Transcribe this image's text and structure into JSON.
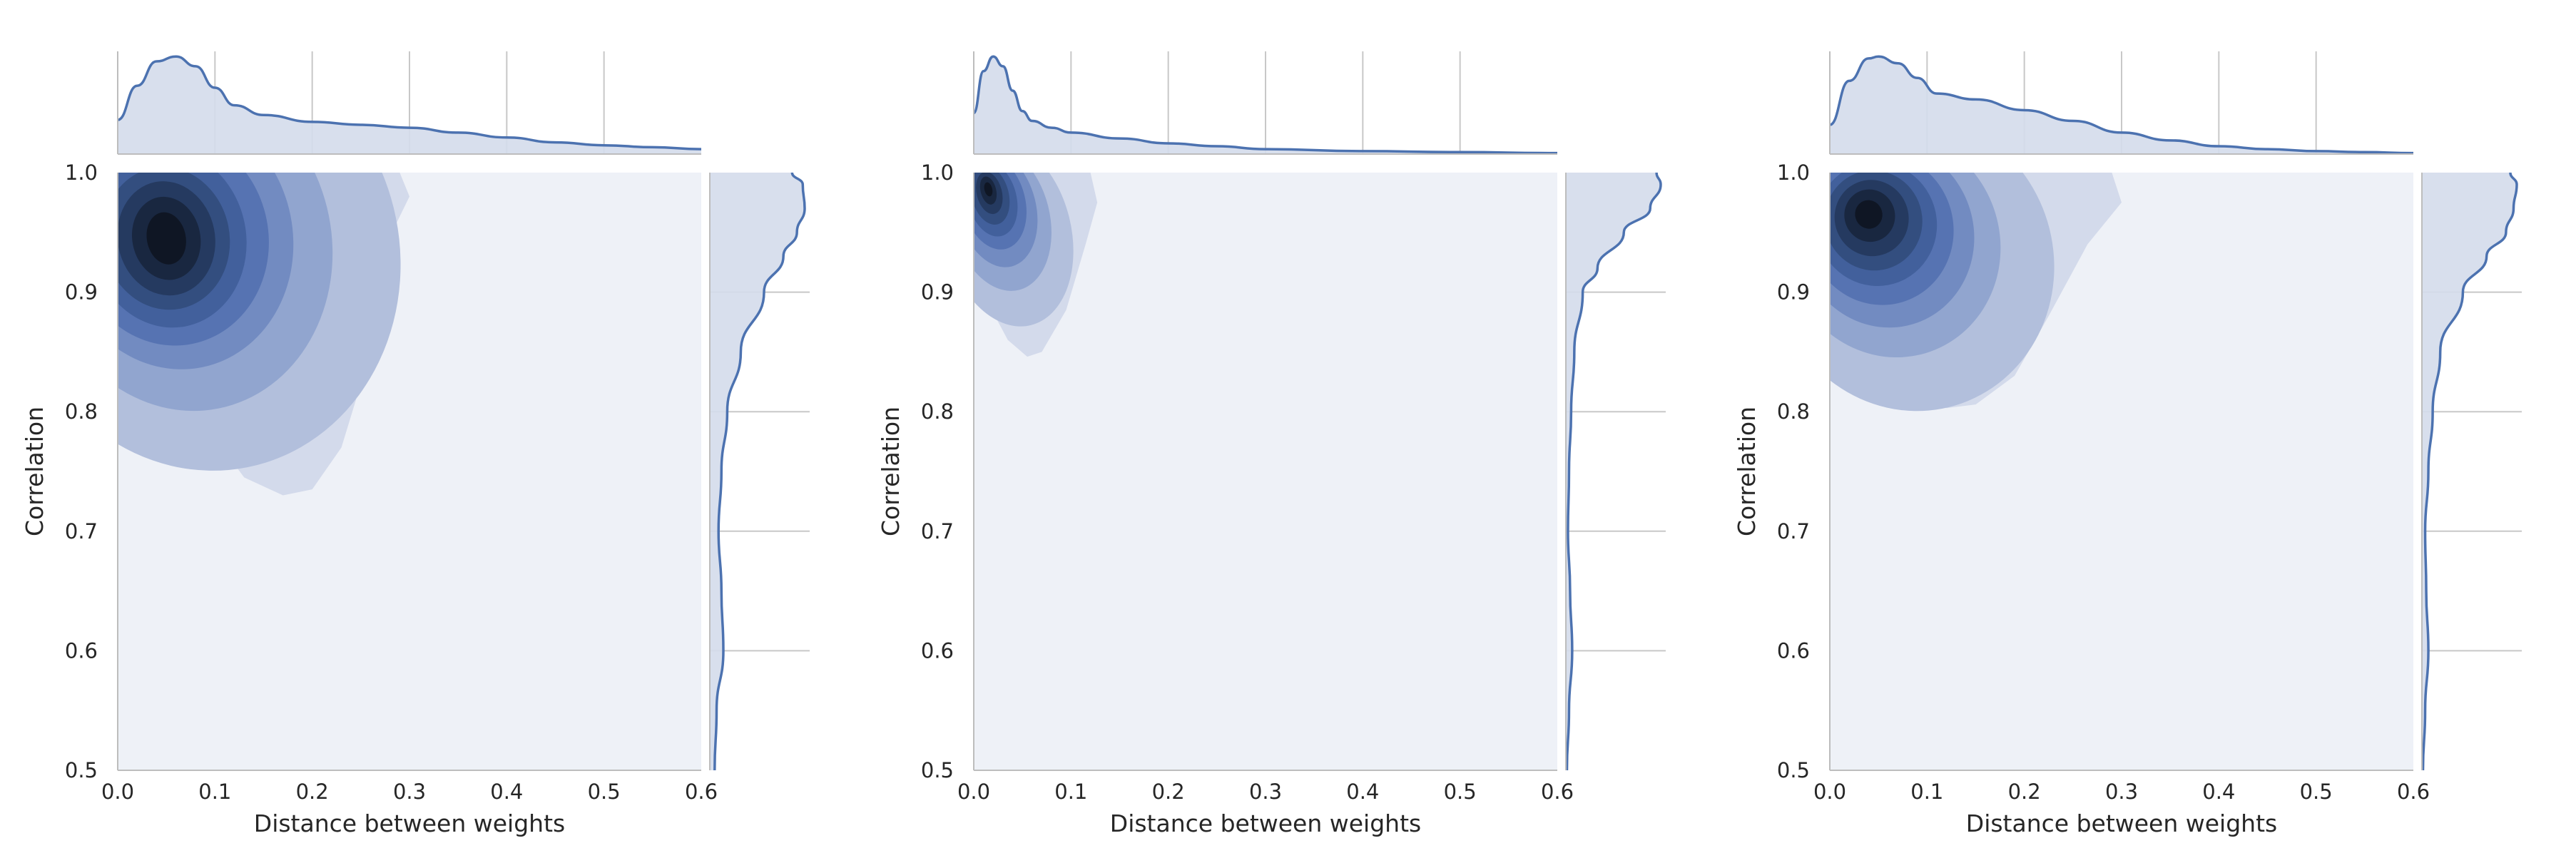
{
  "chart_data": [
    {
      "type": "kde-joint",
      "title": "",
      "xlabel": "Distance between weights",
      "ylabel": "Correlation",
      "xlim": [
        0,
        0.6
      ],
      "ylim": [
        0.5,
        1.0
      ],
      "x_ticks": [
        "0.0",
        "0.1",
        "0.2",
        "0.3",
        "0.4",
        "0.5",
        "0.6"
      ],
      "y_ticks": [
        "0.5",
        "0.6",
        "0.7",
        "0.8",
        "0.9",
        "1.0"
      ],
      "grid": true,
      "density_peak": {
        "x": 0.05,
        "y": 0.94
      },
      "contour_levels": [
        {
          "cx": 0.09,
          "cy": 0.93,
          "rx": 0.2,
          "ry": 0.18,
          "tilt": -0.2
        },
        {
          "cx": 0.07,
          "cy": 0.94,
          "rx": 0.15,
          "ry": 0.14,
          "tilt": -0.2
        },
        {
          "cx": 0.06,
          "cy": 0.945,
          "rx": 0.12,
          "ry": 0.11,
          "tilt": -0.2
        },
        {
          "cx": 0.055,
          "cy": 0.945,
          "rx": 0.1,
          "ry": 0.09,
          "tilt": -0.2
        },
        {
          "cx": 0.052,
          "cy": 0.945,
          "rx": 0.08,
          "ry": 0.075,
          "tilt": -0.2
        },
        {
          "cx": 0.05,
          "cy": 0.945,
          "rx": 0.065,
          "ry": 0.06,
          "tilt": -0.2
        },
        {
          "cx": 0.05,
          "cy": 0.945,
          "rx": 0.05,
          "ry": 0.048,
          "tilt": -0.2
        },
        {
          "cx": 0.05,
          "cy": 0.945,
          "rx": 0.035,
          "ry": 0.035,
          "tilt": -0.2
        },
        {
          "cx": 0.05,
          "cy": 0.945,
          "rx": 0.02,
          "ry": 0.022,
          "tilt": -0.2
        }
      ],
      "outer_region": [
        [
          0.0,
          1.0
        ],
        [
          0.29,
          1.0
        ],
        [
          0.3,
          0.98
        ],
        [
          0.27,
          0.93
        ],
        [
          0.26,
          0.85
        ],
        [
          0.23,
          0.77
        ],
        [
          0.2,
          0.735
        ],
        [
          0.17,
          0.73
        ],
        [
          0.13,
          0.745
        ],
        [
          0.08,
          0.8
        ],
        [
          0.03,
          0.86
        ],
        [
          0.0,
          0.9
        ]
      ],
      "marginal_x": {
        "x": [
          0,
          0.02,
          0.04,
          0.06,
          0.08,
          0.1,
          0.12,
          0.15,
          0.2,
          0.25,
          0.3,
          0.35,
          0.4,
          0.45,
          0.5,
          0.55,
          0.6
        ],
        "density": [
          0.35,
          0.7,
          0.95,
          1.0,
          0.9,
          0.68,
          0.5,
          0.4,
          0.33,
          0.3,
          0.27,
          0.22,
          0.17,
          0.12,
          0.09,
          0.07,
          0.05
        ]
      },
      "marginal_y": {
        "y": [
          0.5,
          0.55,
          0.6,
          0.65,
          0.7,
          0.75,
          0.8,
          0.85,
          0.9,
          0.93,
          0.95,
          0.97,
          0.99,
          1.0
        ],
        "density": [
          0.05,
          0.07,
          0.14,
          0.12,
          0.09,
          0.12,
          0.18,
          0.32,
          0.56,
          0.76,
          0.9,
          0.98,
          0.96,
          0.85
        ]
      }
    },
    {
      "type": "kde-joint",
      "title": "",
      "xlabel": "Distance between weights",
      "ylabel": "Correlation",
      "xlim": [
        0,
        0.6
      ],
      "ylim": [
        0.5,
        1.0
      ],
      "x_ticks": [
        "0.0",
        "0.1",
        "0.2",
        "0.3",
        "0.4",
        "0.5",
        "0.6"
      ],
      "y_ticks": [
        "0.5",
        "0.6",
        "0.7",
        "0.8",
        "0.9",
        "1.0"
      ],
      "grid": true,
      "density_peak": {
        "x": 0.015,
        "y": 0.985
      },
      "contour_levels": [
        {
          "cx": 0.035,
          "cy": 0.95,
          "rx": 0.065,
          "ry": 0.08,
          "tilt": -0.25
        },
        {
          "cx": 0.028,
          "cy": 0.962,
          "rx": 0.05,
          "ry": 0.062,
          "tilt": -0.25
        },
        {
          "cx": 0.024,
          "cy": 0.97,
          "rx": 0.04,
          "ry": 0.05,
          "tilt": -0.25
        },
        {
          "cx": 0.021,
          "cy": 0.975,
          "rx": 0.032,
          "ry": 0.04,
          "tilt": -0.25
        },
        {
          "cx": 0.019,
          "cy": 0.978,
          "rx": 0.025,
          "ry": 0.032,
          "tilt": -0.25
        },
        {
          "cx": 0.017,
          "cy": 0.981,
          "rx": 0.019,
          "ry": 0.025,
          "tilt": -0.25
        },
        {
          "cx": 0.016,
          "cy": 0.983,
          "rx": 0.013,
          "ry": 0.018,
          "tilt": -0.25
        },
        {
          "cx": 0.015,
          "cy": 0.985,
          "rx": 0.008,
          "ry": 0.012,
          "tilt": -0.25
        },
        {
          "cx": 0.015,
          "cy": 0.986,
          "rx": 0.004,
          "ry": 0.006,
          "tilt": -0.25
        }
      ],
      "outer_region": [
        [
          0.0,
          1.0
        ],
        [
          0.12,
          1.0
        ],
        [
          0.127,
          0.975
        ],
        [
          0.115,
          0.94
        ],
        [
          0.095,
          0.885
        ],
        [
          0.07,
          0.85
        ],
        [
          0.055,
          0.846
        ],
        [
          0.035,
          0.86
        ],
        [
          0.012,
          0.895
        ],
        [
          0.0,
          0.915
        ]
      ],
      "marginal_x": {
        "x": [
          0,
          0.01,
          0.02,
          0.03,
          0.04,
          0.05,
          0.06,
          0.08,
          0.1,
          0.15,
          0.2,
          0.25,
          0.3,
          0.4,
          0.5,
          0.6
        ],
        "density": [
          0.42,
          0.85,
          1.0,
          0.9,
          0.65,
          0.44,
          0.34,
          0.27,
          0.22,
          0.16,
          0.11,
          0.08,
          0.05,
          0.03,
          0.02,
          0.01
        ]
      },
      "marginal_y": {
        "y": [
          0.5,
          0.55,
          0.6,
          0.65,
          0.7,
          0.75,
          0.8,
          0.85,
          0.9,
          0.92,
          0.95,
          0.97,
          0.99,
          1.0
        ],
        "density": [
          0.01,
          0.03,
          0.06,
          0.04,
          0.02,
          0.03,
          0.05,
          0.08,
          0.16,
          0.3,
          0.55,
          0.8,
          0.9,
          0.86
        ]
      }
    },
    {
      "type": "kde-joint",
      "title": "",
      "xlabel": "Distance between weights",
      "ylabel": "Correlation",
      "xlim": [
        0,
        0.6
      ],
      "ylim": [
        0.5,
        1.0
      ],
      "x_ticks": [
        "0.0",
        "0.1",
        "0.2",
        "0.3",
        "0.4",
        "0.5",
        "0.6"
      ],
      "y_ticks": [
        "0.5",
        "0.6",
        "0.7",
        "0.8",
        "0.9",
        "1.0"
      ],
      "grid": true,
      "density_peak": {
        "x": 0.04,
        "y": 0.965
      },
      "contour_levels": [
        {
          "cx": 0.085,
          "cy": 0.925,
          "rx": 0.145,
          "ry": 0.125,
          "tilt": -0.3
        },
        {
          "cx": 0.065,
          "cy": 0.94,
          "rx": 0.11,
          "ry": 0.095,
          "tilt": -0.3
        },
        {
          "cx": 0.058,
          "cy": 0.948,
          "rx": 0.09,
          "ry": 0.078,
          "tilt": -0.3
        },
        {
          "cx": 0.052,
          "cy": 0.953,
          "rx": 0.075,
          "ry": 0.064,
          "tilt": -0.3
        },
        {
          "cx": 0.048,
          "cy": 0.957,
          "rx": 0.062,
          "ry": 0.052,
          "tilt": -0.3
        },
        {
          "cx": 0.045,
          "cy": 0.96,
          "rx": 0.05,
          "ry": 0.042,
          "tilt": -0.3
        },
        {
          "cx": 0.043,
          "cy": 0.962,
          "rx": 0.038,
          "ry": 0.032,
          "tilt": -0.3
        },
        {
          "cx": 0.041,
          "cy": 0.964,
          "rx": 0.026,
          "ry": 0.022,
          "tilt": -0.3
        },
        {
          "cx": 0.04,
          "cy": 0.965,
          "rx": 0.014,
          "ry": 0.012,
          "tilt": -0.3
        }
      ],
      "outer_region": [
        [
          0.0,
          1.0
        ],
        [
          0.29,
          1.0
        ],
        [
          0.3,
          0.975
        ],
        [
          0.265,
          0.94
        ],
        [
          0.225,
          0.88
        ],
        [
          0.19,
          0.83
        ],
        [
          0.15,
          0.806
        ],
        [
          0.12,
          0.803
        ],
        [
          0.08,
          0.82
        ],
        [
          0.04,
          0.86
        ],
        [
          0.0,
          0.9
        ]
      ],
      "marginal_x": {
        "x": [
          0,
          0.02,
          0.04,
          0.05,
          0.07,
          0.09,
          0.11,
          0.15,
          0.2,
          0.25,
          0.3,
          0.35,
          0.4,
          0.45,
          0.5,
          0.55,
          0.6
        ],
        "density": [
          0.3,
          0.75,
          0.98,
          1.0,
          0.93,
          0.78,
          0.62,
          0.56,
          0.45,
          0.34,
          0.22,
          0.14,
          0.08,
          0.05,
          0.03,
          0.02,
          0.01
        ]
      },
      "marginal_y": {
        "y": [
          0.5,
          0.55,
          0.6,
          0.65,
          0.7,
          0.75,
          0.8,
          0.85,
          0.9,
          0.93,
          0.95,
          0.97,
          0.99,
          1.0
        ],
        "density": [
          0.01,
          0.03,
          0.06,
          0.04,
          0.03,
          0.06,
          0.1,
          0.17,
          0.38,
          0.6,
          0.78,
          0.85,
          0.88,
          0.82
        ]
      }
    }
  ],
  "style": {
    "axes_background": "#eef1f7",
    "line_color": "#4c72b0",
    "marginal_fill": "#d4dbeb",
    "grid_color": "#c8c8c8",
    "contour_colors": [
      "#d3daeb",
      "#b2bfdc",
      "#91a5cf",
      "#728bc1",
      "#5673b2",
      "#42609c",
      "#334e7f",
      "#253a60",
      "#192740",
      "#0f1624"
    ]
  }
}
